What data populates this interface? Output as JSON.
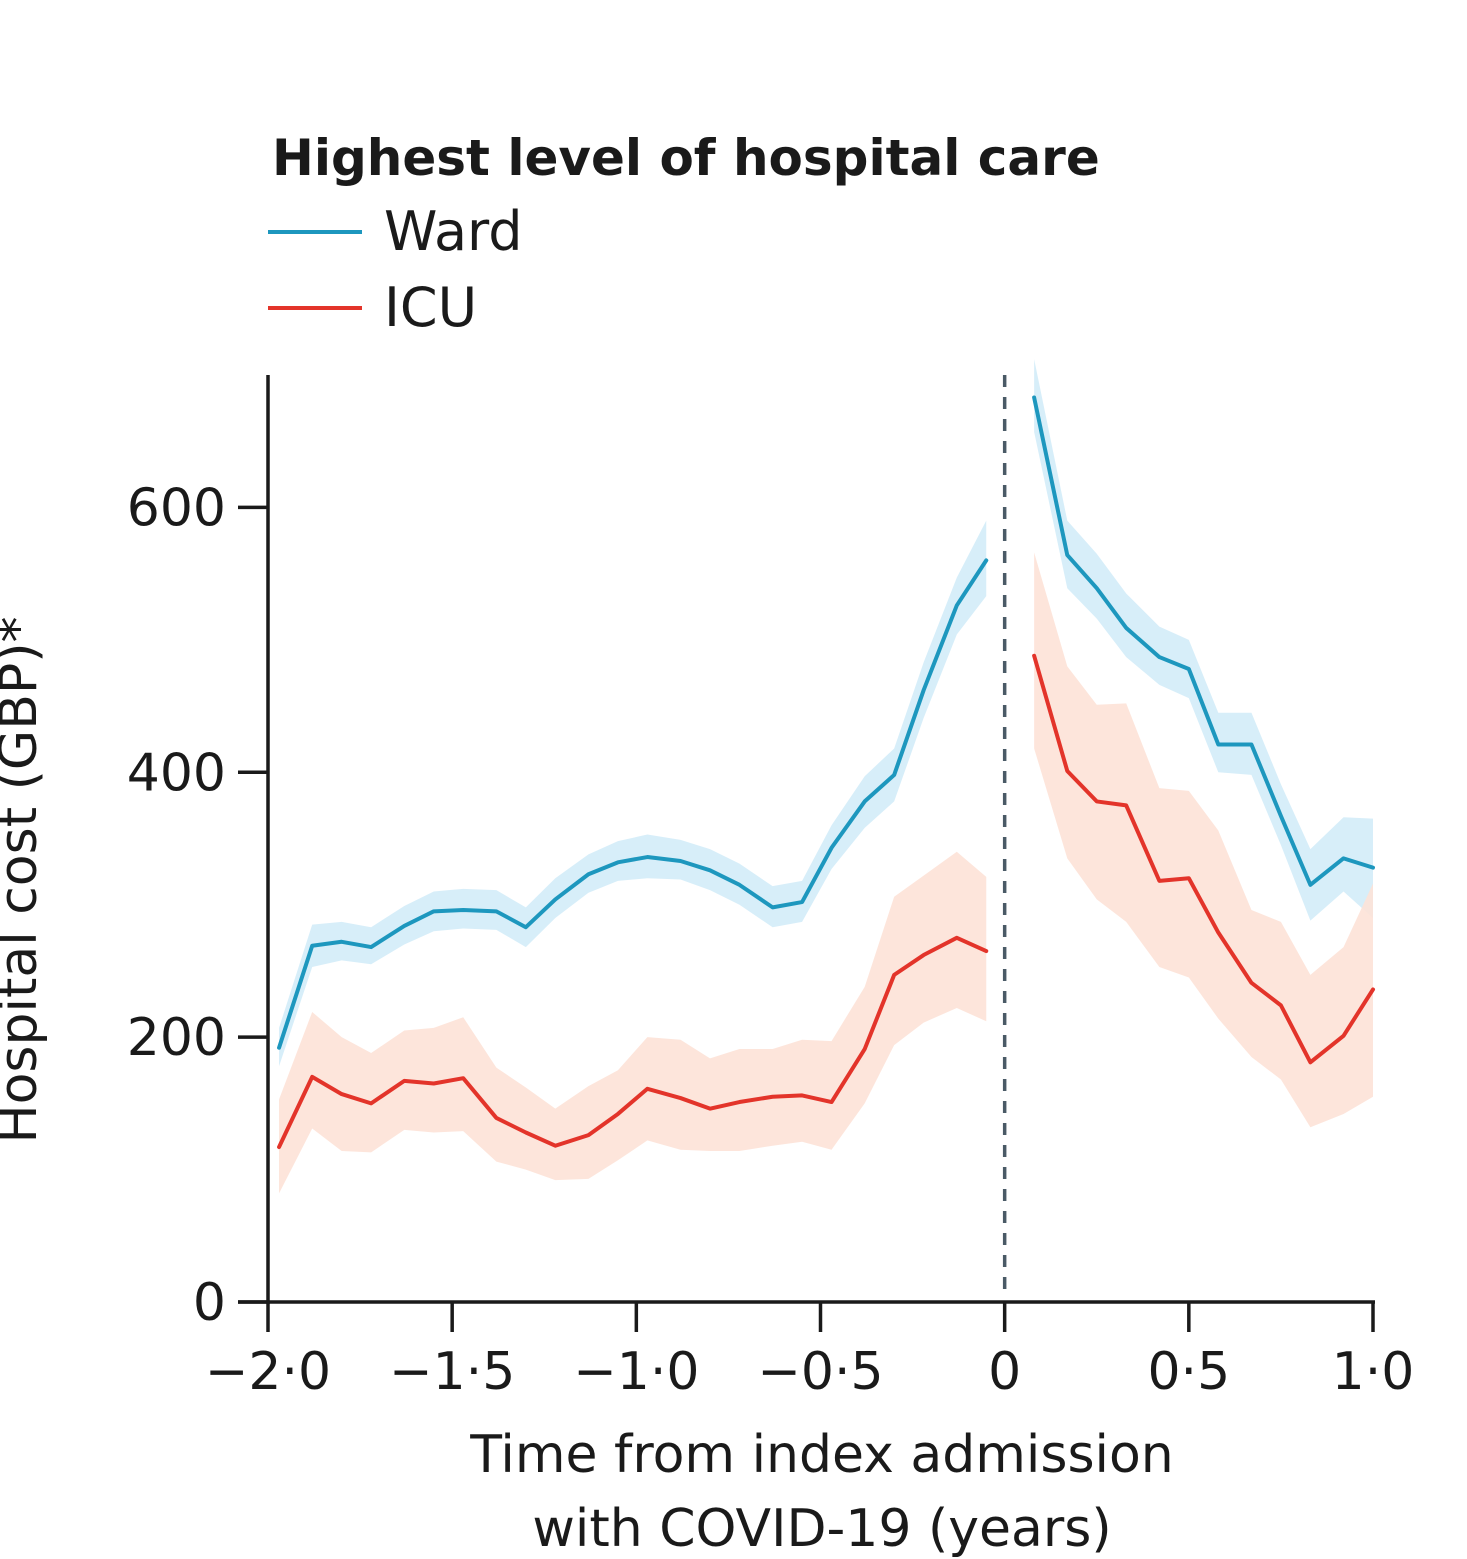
{
  "chart_data": {
    "type": "line",
    "title": "",
    "legend": {
      "title": "Highest level of hospital care",
      "position": "top-left",
      "entries": [
        {
          "name": "Ward",
          "color": "#1d97be"
        },
        {
          "name": "ICU",
          "color": "#e3342a"
        }
      ]
    },
    "xlabel_line1": "Time from index admission",
    "xlabel_line2": "with COVID-19 (years)",
    "ylabel": "Hospital cost (GBP)*",
    "xlim": [
      -2.0,
      1.0
    ],
    "ylim": [
      0,
      700
    ],
    "x_ticks": [
      {
        "value": -2.0,
        "label": "−2·0"
      },
      {
        "value": -1.5,
        "label": "−1·5"
      },
      {
        "value": -1.0,
        "label": "−1·0"
      },
      {
        "value": -0.5,
        "label": "−0·5"
      },
      {
        "value": 0,
        "label": "0"
      },
      {
        "value": 0.5,
        "label": "0·5"
      },
      {
        "value": 1.0,
        "label": "1·0"
      }
    ],
    "y_ticks": [
      {
        "value": 0,
        "label": "0"
      },
      {
        "value": 200,
        "label": "200"
      },
      {
        "value": 400,
        "label": "400"
      },
      {
        "value": 600,
        "label": "600"
      }
    ],
    "reference_line_x": 0,
    "series": [
      {
        "name": "Ward",
        "color": "#1d97be",
        "band_color": "#d3ecf8",
        "segments": [
          {
            "x": [
              -1.97,
              -1.88,
              -1.8,
              -1.72,
              -1.63,
              -1.55,
              -1.47,
              -1.38,
              -1.3,
              -1.22,
              -1.13,
              -1.05,
              -0.97,
              -0.88,
              -0.8,
              -0.72,
              -0.63,
              -0.55,
              -0.47,
              -0.38,
              -0.3,
              -0.22,
              -0.13,
              -0.05
            ],
            "y": [
              192,
              269,
              272,
              268,
              284,
              295,
              296,
              295,
              283,
              304,
              323,
              332,
              336,
              333,
              326,
              315,
              298,
              302,
              343,
              378,
              398,
              462,
              526,
              560
            ],
            "lower": [
              178,
              253,
              258,
              255,
              270,
              280,
              282,
              281,
              268,
              290,
              309,
              318,
              320,
              319,
              311,
              300,
              283,
              287,
              327,
              358,
              378,
              441,
              504,
              533
            ],
            "upper": [
              207,
              285,
              287,
              283,
              299,
              310,
              312,
              311,
              298,
              320,
              338,
              348,
              353,
              349,
              342,
              331,
              314,
              318,
              360,
              397,
              418,
              483,
              547,
              590
            ]
          },
          {
            "x": [
              0.08,
              0.17,
              0.25,
              0.33,
              0.42,
              0.5,
              0.58,
              0.67,
              0.75,
              0.83,
              0.92,
              1.0
            ],
            "y": [
              683,
              564,
              539,
              509,
              487,
              478,
              421,
              421,
              367,
              315,
              335,
              328
            ],
            "lower": [
              657,
              539,
              516,
              487,
              466,
              456,
              400,
              398,
              345,
              288,
              310,
              290
            ],
            "upper": [
              712,
              590,
              565,
              535,
              510,
              500,
              445,
              445,
              391,
              342,
              366,
              365
            ]
          }
        ]
      },
      {
        "name": "ICU",
        "color": "#e3342a",
        "band_color": "#fde2d7",
        "segments": [
          {
            "x": [
              -1.97,
              -1.88,
              -1.8,
              -1.72,
              -1.63,
              -1.55,
              -1.47,
              -1.38,
              -1.3,
              -1.22,
              -1.13,
              -1.05,
              -0.97,
              -0.88,
              -0.8,
              -0.72,
              -0.63,
              -0.55,
              -0.47,
              -0.38,
              -0.3,
              -0.22,
              -0.13,
              -0.05
            ],
            "y": [
              117,
              170,
              157,
              150,
              167,
              165,
              169,
              139,
              128,
              118,
              126,
              142,
              161,
              154,
              146,
              151,
              155,
              156,
              151,
              191,
              247,
              262,
              275,
              265
            ],
            "lower": [
              82,
              131,
              114,
              113,
              130,
              128,
              129,
              106,
              100,
              92,
              93,
              107,
              122,
              115,
              114,
              114,
              118,
              121,
              115,
              150,
              194,
              211,
              222,
              212
            ],
            "upper": [
              153,
              219,
              200,
              188,
              205,
              207,
              215,
              177,
              162,
              146,
              163,
              175,
              200,
              198,
              184,
              191,
              191,
              198,
              197,
              238,
              306,
              322,
              340,
              321
            ]
          },
          {
            "x": [
              0.08,
              0.17,
              0.25,
              0.33,
              0.42,
              0.5,
              0.58,
              0.67,
              0.75,
              0.83,
              0.92,
              1.0
            ],
            "y": [
              488,
              401,
              378,
              375,
              318,
              320,
              279,
              241,
              224,
              181,
              201,
              236
            ],
            "lower": [
              418,
              335,
              304,
              287,
              253,
              245,
              214,
              185,
              168,
              132,
              142,
              155
            ],
            "upper": [
              566,
              480,
              451,
              452,
              388,
              386,
              356,
              296,
              287,
              247,
              268,
              316
            ]
          }
        ]
      }
    ]
  }
}
